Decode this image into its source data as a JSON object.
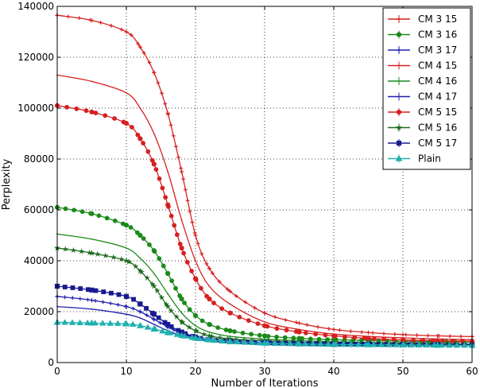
{
  "chart_data": {
    "type": "line",
    "xlabel": "Number of Iterations",
    "ylabel": "Perplexity",
    "xlim": [
      0,
      60
    ],
    "ylim": [
      0,
      140000
    ],
    "x_ticks": [
      0,
      10,
      20,
      30,
      40,
      50,
      60
    ],
    "y_ticks": [
      0,
      20000,
      40000,
      60000,
      80000,
      100000,
      120000,
      140000
    ],
    "grid": "dotted",
    "legend_position": "top-right",
    "x": [
      0,
      5,
      10,
      12,
      14,
      16,
      18,
      20,
      22,
      25,
      30,
      35,
      40,
      45,
      50,
      55,
      60
    ],
    "series": [
      {
        "name": "CM 3 15",
        "color": "#d62020",
        "marker": "plus",
        "values": [
          136500,
          134500,
          130000,
          124000,
          114000,
          98000,
          75000,
          50000,
          37000,
          28000,
          19500,
          15500,
          13000,
          11800,
          11000,
          10500,
          10200
        ]
      },
      {
        "name": "CM 3 16",
        "color": "#1a8a1a",
        "marker": "circle",
        "values": [
          61000,
          58500,
          54000,
          50000,
          44000,
          35000,
          25000,
          18500,
          15000,
          12500,
          10500,
          9500,
          9000,
          8700,
          8400,
          8200,
          8000
        ]
      },
      {
        "name": "CM 3 17",
        "color": "#2020b0",
        "marker": "plus",
        "values": [
          26000,
          24500,
          22000,
          20000,
          17000,
          14000,
          11500,
          9800,
          9000,
          8300,
          7800,
          7500,
          7300,
          7100,
          7000,
          6900,
          6800
        ]
      },
      {
        "name": "CM 4 15",
        "color": "#d62020",
        "marker": "none",
        "values": [
          113000,
          110500,
          106000,
          100000,
          90000,
          75000,
          56000,
          40000,
          30000,
          23000,
          16000,
          13000,
          11200,
          10300,
          9700,
          9300,
          9000
        ]
      },
      {
        "name": "CM 4 16",
        "color": "#1a8a1a",
        "marker": "none",
        "values": [
          50500,
          48500,
          45000,
          41000,
          35000,
          27000,
          19500,
          14500,
          12000,
          10300,
          9200,
          8600,
          8200,
          7900,
          7700,
          7500,
          7300
        ]
      },
      {
        "name": "CM 4 17",
        "color": "#2020b0",
        "marker": "none",
        "values": [
          22000,
          21000,
          19000,
          17500,
          15000,
          12500,
          10500,
          9300,
          8600,
          8000,
          7500,
          7200,
          7000,
          6900,
          6800,
          6700,
          6600
        ]
      },
      {
        "name": "CM 5 15",
        "color": "#d62020",
        "marker": "circle",
        "values": [
          101000,
          98500,
          94000,
          88000,
          78000,
          62000,
          45000,
          33000,
          25000,
          19500,
          14500,
          12000,
          10500,
          9500,
          8900,
          8600,
          8400
        ]
      },
      {
        "name": "CM 5 16",
        "color": "#1a6a1a",
        "marker": "star",
        "values": [
          45000,
          43000,
          40000,
          36000,
          30000,
          22000,
          16000,
          12500,
          10500,
          9300,
          8500,
          8000,
          7700,
          7500,
          7300,
          7200,
          7100
        ]
      },
      {
        "name": "CM 5 17",
        "color": "#1a1a90",
        "marker": "square",
        "values": [
          30000,
          28500,
          26000,
          23000,
          19000,
          15000,
          12000,
          10000,
          9000,
          8300,
          7800,
          7500,
          7300,
          7200,
          7100,
          7000,
          6900
        ]
      },
      {
        "name": "Plain",
        "color": "#20b0b0",
        "marker": "triangle",
        "values": [
          15800,
          15500,
          15200,
          14500,
          13200,
          11800,
          10600,
          9600,
          8900,
          8200,
          7600,
          7300,
          7100,
          7000,
          6900,
          6800,
          6700
        ]
      }
    ]
  }
}
